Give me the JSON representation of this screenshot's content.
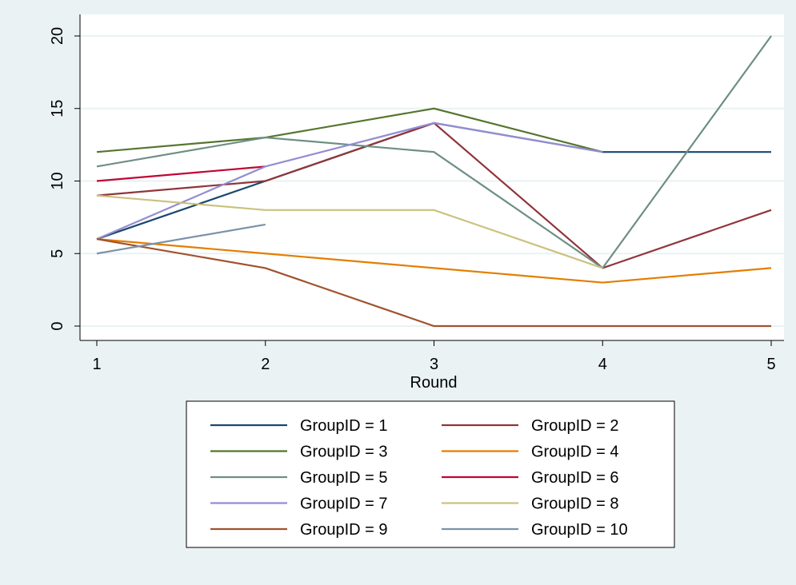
{
  "chart_data": {
    "type": "line",
    "title": "",
    "xlabel": "Round",
    "ylabel": "",
    "x": [
      1,
      2,
      3,
      4,
      5
    ],
    "xlim": [
      1,
      5
    ],
    "ylim": [
      0,
      20
    ],
    "xticks": [
      "1",
      "2",
      "3",
      "4",
      "5"
    ],
    "yticks": [
      "0",
      "5",
      "10",
      "15",
      "20"
    ],
    "grid": "horizontal",
    "legend_position": "bottom",
    "series": [
      {
        "name": "GroupID = 1",
        "color": "#1a476f",
        "values": [
          6,
          10,
          14,
          12,
          12
        ]
      },
      {
        "name": "GroupID = 2",
        "color": "#90353b",
        "values": [
          9,
          10,
          14,
          4,
          8
        ]
      },
      {
        "name": "GroupID = 3",
        "color": "#55752f",
        "values": [
          12,
          13,
          15,
          12,
          null
        ]
      },
      {
        "name": "GroupID = 4",
        "color": "#e37e00",
        "values": [
          6,
          5,
          4,
          3,
          4
        ]
      },
      {
        "name": "GroupID = 5",
        "color": "#6e8e84",
        "values": [
          11,
          13,
          12,
          4,
          20
        ]
      },
      {
        "name": "GroupID = 6",
        "color": "#c10534",
        "values": [
          10,
          11,
          null,
          null,
          null
        ]
      },
      {
        "name": "GroupID = 7",
        "color": "#938dd2",
        "values": [
          6,
          11,
          14,
          12,
          null
        ]
      },
      {
        "name": "GroupID = 8",
        "color": "#cac27e",
        "values": [
          9,
          8,
          8,
          4,
          null
        ]
      },
      {
        "name": "GroupID = 9",
        "color": "#a0522d",
        "values": [
          6,
          4,
          0,
          0,
          0
        ]
      },
      {
        "name": "GroupID = 10",
        "color": "#7b92a8",
        "values": [
          5,
          7,
          null,
          null,
          null
        ]
      }
    ]
  }
}
